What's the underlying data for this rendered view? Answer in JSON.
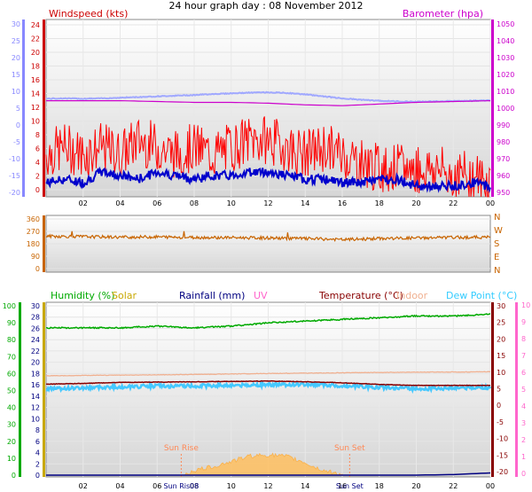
{
  "title": "24 hour graph day : 08 November 2012",
  "colors": {
    "wind_axis": "#cc0000",
    "wind_gust": "#ff0000",
    "wind_avg": "#0000cc",
    "baro": "#cc00cc",
    "temp_left_axis": "#8888ff",
    "dir": "#c86400",
    "humidity": "#00aa00",
    "solar": "#c8a800",
    "rain": "#000080",
    "uv": "#ff66cc",
    "temperature": "#880000",
    "indoor": "#f0b090",
    "dewpoint": "#33ccff",
    "sun_marker": "#ff8855"
  },
  "chart_data": [
    {
      "type": "line",
      "panel": "wind-baro",
      "left_label": "Windspeed (kts)",
      "right_label": "Barometer (hpa)",
      "far_left_ticks": [
        "30",
        "25",
        "20",
        "15",
        "10",
        "5",
        "0",
        "-5",
        "-10",
        "-15",
        "-20"
      ],
      "left_ticks": [
        "24",
        "22",
        "20",
        "18",
        "16",
        "14",
        "12",
        "10",
        "8",
        "6",
        "4",
        "2",
        "0"
      ],
      "right_ticks": [
        "1050",
        "1040",
        "1030",
        "1020",
        "1010",
        "1000",
        "990",
        "980",
        "970",
        "960",
        "950"
      ],
      "x_ticks": [
        "02",
        "04",
        "06",
        "08",
        "10",
        "12",
        "14",
        "16",
        "18",
        "20",
        "22",
        "00"
      ],
      "x_hour_range": [
        0,
        24
      ],
      "wind_range": [
        0,
        25
      ],
      "baro_range": [
        945,
        1052
      ],
      "series": [
        {
          "key": "gust",
          "hours": [
            0,
            1,
            2,
            3,
            4,
            5,
            6,
            7,
            8,
            9,
            10,
            11,
            12,
            13,
            14,
            15,
            16,
            17,
            18,
            19,
            20,
            21,
            22,
            23,
            24
          ],
          "values": [
            6,
            7,
            6,
            7,
            6,
            8,
            7,
            6,
            7,
            6,
            7,
            8,
            8,
            7,
            6,
            7,
            6,
            5,
            4,
            4,
            4,
            4,
            3,
            3,
            2
          ]
        },
        {
          "key": "wind_avg",
          "hours": [
            0,
            1,
            2,
            3,
            4,
            5,
            6,
            7,
            8,
            9,
            10,
            11,
            12,
            13,
            14,
            15,
            16,
            17,
            18,
            19,
            20,
            21,
            22,
            23,
            24
          ],
          "values": [
            2,
            2.5,
            2,
            3.5,
            3,
            2.5,
            3.5,
            3,
            2.5,
            3,
            3,
            3.5,
            3.5,
            3,
            2.5,
            2.5,
            2,
            2,
            2.5,
            2.5,
            1.5,
            1.5,
            1.5,
            2,
            1.5
          ]
        },
        {
          "key": "outdoor_temp_trace",
          "hours": [
            0,
            1,
            2,
            3,
            4,
            5,
            6,
            7,
            8,
            9,
            10,
            11,
            12,
            13,
            14,
            15,
            16,
            17,
            18,
            19,
            20,
            21,
            22,
            23,
            24
          ],
          "values": [
            7.8,
            7.9,
            7.8,
            7.9,
            8.1,
            8.3,
            8.5,
            8.7,
            8.9,
            9.2,
            9.4,
            9.6,
            9.7,
            9.5,
            9.1,
            8.5,
            7.9,
            7.5,
            7.2,
            7.0,
            6.9,
            7.0,
            7.1,
            7.2,
            7.3
          ]
        },
        {
          "key": "barometer",
          "hours": [
            0,
            2,
            4,
            6,
            8,
            10,
            12,
            14,
            16,
            18,
            20,
            22,
            24
          ],
          "values": [
            1003,
            1003,
            1003,
            1002.5,
            1002,
            1002,
            1001.5,
            1000.5,
            1000,
            1001,
            1002,
            1002.5,
            1003
          ]
        }
      ]
    },
    {
      "type": "line",
      "panel": "direction",
      "left_ticks": [
        "360",
        "270",
        "180",
        "90",
        "0"
      ],
      "right_ticks": [
        "N",
        "W",
        "S",
        "E",
        "N"
      ],
      "x_hour_range": [
        0,
        24
      ],
      "dir_range": [
        0,
        360
      ],
      "series": [
        {
          "key": "direction",
          "hours": [
            0,
            2,
            4,
            6,
            8,
            10,
            12,
            14,
            16,
            18,
            20,
            22,
            24
          ],
          "values": [
            235,
            232,
            228,
            230,
            226,
            225,
            222,
            218,
            210,
            218,
            222,
            226,
            228
          ]
        }
      ]
    },
    {
      "type": "line",
      "panel": "humidity-temp",
      "labels": {
        "humidity": "Humidity (%)",
        "solar": "Solar",
        "rainfall": "Rainfall (mm)",
        "uv": "UV",
        "temperature": "Temperature (°C)",
        "indoor": "Indoor",
        "dewpoint": "Dew Point (°C)"
      },
      "far_left_ticks": [
        "100",
        "90",
        "80",
        "70",
        "60",
        "50",
        "40",
        "30",
        "20",
        "10",
        "0"
      ],
      "left_ticks": [
        "30",
        "28",
        "26",
        "24",
        "22",
        "20",
        "18",
        "16",
        "14",
        "12",
        "10",
        "8",
        "6",
        "4",
        "2",
        "0"
      ],
      "temp_ticks": [
        "30",
        "25",
        "20",
        "15",
        "10",
        "5",
        "0",
        "-5",
        "-10",
        "-15",
        "-20"
      ],
      "uv_ticks": [
        "10",
        "9",
        "8",
        "7",
        "6",
        "5",
        "4",
        "3",
        "2",
        "1",
        "0"
      ],
      "x_ticks": [
        "02",
        "04",
        "06",
        "08",
        "10",
        "12",
        "14",
        "16",
        "18",
        "20",
        "22",
        "00"
      ],
      "sun_rise_label": "Sun Rise",
      "sun_set_label": "Sun Set",
      "sun_rise_axis_label": "Sun Ris08",
      "sun_set_axis_label": "Sun Set",
      "sun_rise_hour": 7.3,
      "sun_set_hour": 16.4,
      "x_hour_range": [
        0,
        24
      ],
      "humidity_range": [
        0,
        100
      ],
      "temp_range": [
        -20,
        30
      ],
      "series": [
        {
          "key": "humidity",
          "hours": [
            0,
            2,
            4,
            6,
            8,
            10,
            12,
            14,
            16,
            18,
            20,
            22,
            24
          ],
          "values": [
            87,
            87,
            87,
            88,
            87,
            88,
            90,
            91,
            92,
            93,
            94,
            94,
            95
          ]
        },
        {
          "key": "indoor",
          "hours": [
            0,
            4,
            8,
            12,
            16,
            20,
            24
          ],
          "values": [
            8.9,
            9.1,
            9.3,
            9.6,
            9.8,
            10,
            10.1
          ]
        },
        {
          "key": "temperature",
          "hours": [
            0,
            2,
            4,
            6,
            8,
            10,
            12,
            14,
            16,
            18,
            20,
            22,
            24
          ],
          "values": [
            6.4,
            6.6,
            6.9,
            7.0,
            7.1,
            7.2,
            7.3,
            7.1,
            6.8,
            6.3,
            6.0,
            6.0,
            6.0
          ]
        },
        {
          "key": "dewpoint",
          "hours": [
            0,
            2,
            4,
            6,
            8,
            10,
            12,
            14,
            16,
            18,
            20,
            22,
            24
          ],
          "values": [
            5.0,
            5.2,
            5.6,
            5.8,
            5.8,
            6.0,
            6.2,
            6.2,
            6.0,
            5.4,
            5.0,
            5.2,
            5.4
          ]
        },
        {
          "key": "solar",
          "hours": [
            7.5,
            8,
            9,
            10,
            11,
            12,
            13,
            14,
            14.5,
            15,
            16
          ],
          "values": [
            0.2,
            0.8,
            1.5,
            2.4,
            3.4,
            3.6,
            3.3,
            2.2,
            1.4,
            0.8,
            0.1
          ]
        },
        {
          "key": "rainfall",
          "hours": [
            0,
            4,
            8,
            12,
            16,
            20,
            22,
            24
          ],
          "values": [
            0,
            0,
            0,
            0,
            0,
            0,
            0.1,
            0.4
          ]
        }
      ]
    }
  ]
}
